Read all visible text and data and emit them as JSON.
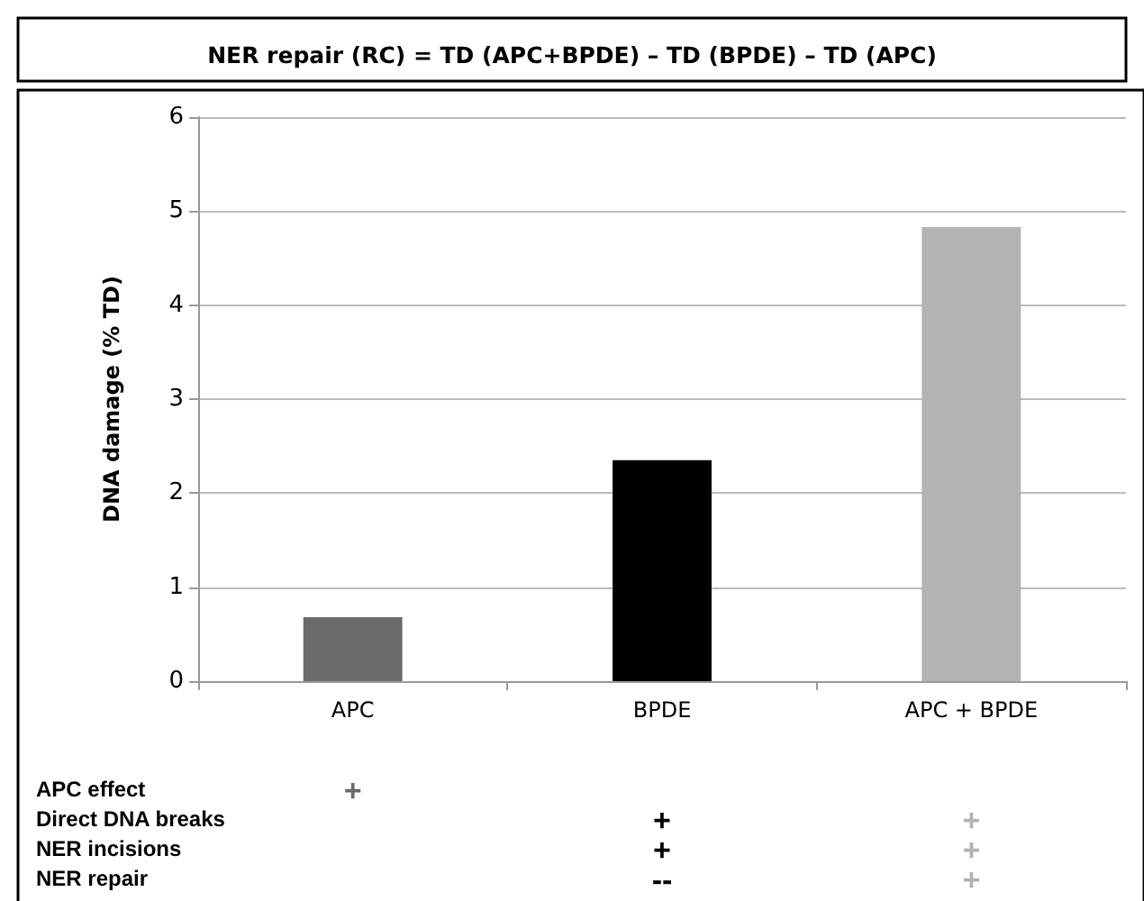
{
  "chart_data": {
    "type": "bar",
    "title": "NER repair (RC) = TD (APC+BPDE) – TD (BPDE) – TD (APC)",
    "ylabel": "DNA damage (% TD)",
    "categories": [
      "APC",
      "BPDE",
      "APC + BPDE"
    ],
    "values": [
      0.68,
      2.35,
      4.83
    ],
    "colors": [
      "#6b6b6b",
      "#000000",
      "#b3b3b3"
    ],
    "ylim": [
      0,
      6
    ],
    "yticks": [
      0,
      1,
      2,
      3,
      4,
      5,
      6
    ],
    "grid": "y",
    "annotations": [
      "APC effect",
      "+",
      null,
      null,
      "Direct DNA breaks",
      null,
      "+",
      "+",
      "NER incisions",
      null,
      "+",
      "+",
      "NER repair",
      null,
      "--",
      "+"
    ]
  }
}
